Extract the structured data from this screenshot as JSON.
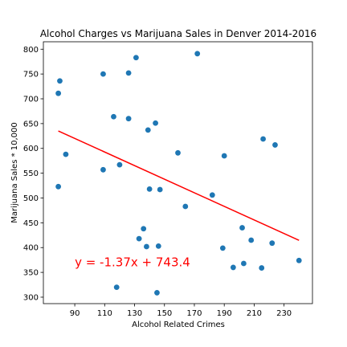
{
  "chart_data": {
    "type": "scatter",
    "title": "Alcohol Charges vs Marijuana Sales in Denver 2014-2016",
    "xlabel": "Alcohol Related Crimes",
    "ylabel": "Marijuana Sales * 10,000",
    "xlim": [
      69,
      249
    ],
    "ylim": [
      287,
      815
    ],
    "xticks": [
      90,
      110,
      130,
      150,
      170,
      190,
      210,
      230
    ],
    "yticks": [
      300,
      350,
      400,
      450,
      500,
      550,
      600,
      650,
      700,
      750,
      800
    ],
    "grid": false,
    "point_color": "#1f77b4",
    "points": [
      {
        "x": 80,
        "y": 736
      },
      {
        "x": 79,
        "y": 711
      },
      {
        "x": 79,
        "y": 523
      },
      {
        "x": 84,
        "y": 588
      },
      {
        "x": 109,
        "y": 750
      },
      {
        "x": 109,
        "y": 557
      },
      {
        "x": 116,
        "y": 664
      },
      {
        "x": 118,
        "y": 320
      },
      {
        "x": 120,
        "y": 567
      },
      {
        "x": 126,
        "y": 752
      },
      {
        "x": 126,
        "y": 660
      },
      {
        "x": 131,
        "y": 783
      },
      {
        "x": 133,
        "y": 418
      },
      {
        "x": 136,
        "y": 438
      },
      {
        "x": 138,
        "y": 402
      },
      {
        "x": 139,
        "y": 637
      },
      {
        "x": 140,
        "y": 518
      },
      {
        "x": 144,
        "y": 651
      },
      {
        "x": 145,
        "y": 309
      },
      {
        "x": 146,
        "y": 403
      },
      {
        "x": 147,
        "y": 517
      },
      {
        "x": 159,
        "y": 591
      },
      {
        "x": 164,
        "y": 483
      },
      {
        "x": 172,
        "y": 791
      },
      {
        "x": 182,
        "y": 506
      },
      {
        "x": 189,
        "y": 399
      },
      {
        "x": 190,
        "y": 585
      },
      {
        "x": 196,
        "y": 360
      },
      {
        "x": 202,
        "y": 440
      },
      {
        "x": 203,
        "y": 368
      },
      {
        "x": 208,
        "y": 415
      },
      {
        "x": 215,
        "y": 359
      },
      {
        "x": 216,
        "y": 619
      },
      {
        "x": 222,
        "y": 409
      },
      {
        "x": 224,
        "y": 607
      },
      {
        "x": 240,
        "y": 374
      }
    ],
    "regression": {
      "slope": -1.37,
      "intercept": 743.4,
      "x_start": 79,
      "x_end": 240,
      "color": "#ff0000",
      "label": "y = -1.37x + 743.4",
      "label_color": "#ff0000",
      "label_x": 90,
      "label_y": 362
    }
  }
}
